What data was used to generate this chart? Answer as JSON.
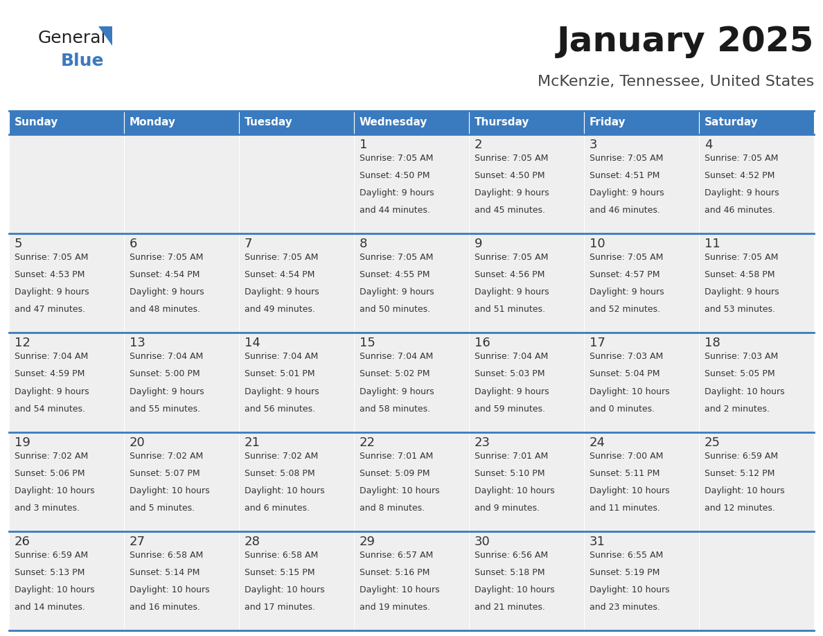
{
  "title": "January 2025",
  "subtitle": "McKenzie, Tennessee, United States",
  "header_color": "#3a7abf",
  "header_text_color": "#ffffff",
  "cell_bg_color": "#efefef",
  "cell_bg_color2": "#ffffff",
  "cell_border_color": "#3a7abf",
  "day_number_color": "#333333",
  "text_color": "#333333",
  "days_of_week": [
    "Sunday",
    "Monday",
    "Tuesday",
    "Wednesday",
    "Thursday",
    "Friday",
    "Saturday"
  ],
  "calendar_data": [
    [
      {
        "day": "",
        "sunrise": "",
        "sunset": "",
        "daylight_line1": "",
        "daylight_line2": ""
      },
      {
        "day": "",
        "sunrise": "",
        "sunset": "",
        "daylight_line1": "",
        "daylight_line2": ""
      },
      {
        "day": "",
        "sunrise": "",
        "sunset": "",
        "daylight_line1": "",
        "daylight_line2": ""
      },
      {
        "day": "1",
        "sunrise": "7:05 AM",
        "sunset": "4:50 PM",
        "daylight_line1": "9 hours",
        "daylight_line2": "and 44 minutes."
      },
      {
        "day": "2",
        "sunrise": "7:05 AM",
        "sunset": "4:50 PM",
        "daylight_line1": "9 hours",
        "daylight_line2": "and 45 minutes."
      },
      {
        "day": "3",
        "sunrise": "7:05 AM",
        "sunset": "4:51 PM",
        "daylight_line1": "9 hours",
        "daylight_line2": "and 46 minutes."
      },
      {
        "day": "4",
        "sunrise": "7:05 AM",
        "sunset": "4:52 PM",
        "daylight_line1": "9 hours",
        "daylight_line2": "and 46 minutes."
      }
    ],
    [
      {
        "day": "5",
        "sunrise": "7:05 AM",
        "sunset": "4:53 PM",
        "daylight_line1": "9 hours",
        "daylight_line2": "and 47 minutes."
      },
      {
        "day": "6",
        "sunrise": "7:05 AM",
        "sunset": "4:54 PM",
        "daylight_line1": "9 hours",
        "daylight_line2": "and 48 minutes."
      },
      {
        "day": "7",
        "sunrise": "7:05 AM",
        "sunset": "4:54 PM",
        "daylight_line1": "9 hours",
        "daylight_line2": "and 49 minutes."
      },
      {
        "day": "8",
        "sunrise": "7:05 AM",
        "sunset": "4:55 PM",
        "daylight_line1": "9 hours",
        "daylight_line2": "and 50 minutes."
      },
      {
        "day": "9",
        "sunrise": "7:05 AM",
        "sunset": "4:56 PM",
        "daylight_line1": "9 hours",
        "daylight_line2": "and 51 minutes."
      },
      {
        "day": "10",
        "sunrise": "7:05 AM",
        "sunset": "4:57 PM",
        "daylight_line1": "9 hours",
        "daylight_line2": "and 52 minutes."
      },
      {
        "day": "11",
        "sunrise": "7:05 AM",
        "sunset": "4:58 PM",
        "daylight_line1": "9 hours",
        "daylight_line2": "and 53 minutes."
      }
    ],
    [
      {
        "day": "12",
        "sunrise": "7:04 AM",
        "sunset": "4:59 PM",
        "daylight_line1": "9 hours",
        "daylight_line2": "and 54 minutes."
      },
      {
        "day": "13",
        "sunrise": "7:04 AM",
        "sunset": "5:00 PM",
        "daylight_line1": "9 hours",
        "daylight_line2": "and 55 minutes."
      },
      {
        "day": "14",
        "sunrise": "7:04 AM",
        "sunset": "5:01 PM",
        "daylight_line1": "9 hours",
        "daylight_line2": "and 56 minutes."
      },
      {
        "day": "15",
        "sunrise": "7:04 AM",
        "sunset": "5:02 PM",
        "daylight_line1": "9 hours",
        "daylight_line2": "and 58 minutes."
      },
      {
        "day": "16",
        "sunrise": "7:04 AM",
        "sunset": "5:03 PM",
        "daylight_line1": "9 hours",
        "daylight_line2": "and 59 minutes."
      },
      {
        "day": "17",
        "sunrise": "7:03 AM",
        "sunset": "5:04 PM",
        "daylight_line1": "10 hours",
        "daylight_line2": "and 0 minutes."
      },
      {
        "day": "18",
        "sunrise": "7:03 AM",
        "sunset": "5:05 PM",
        "daylight_line1": "10 hours",
        "daylight_line2": "and 2 minutes."
      }
    ],
    [
      {
        "day": "19",
        "sunrise": "7:02 AM",
        "sunset": "5:06 PM",
        "daylight_line1": "10 hours",
        "daylight_line2": "and 3 minutes."
      },
      {
        "day": "20",
        "sunrise": "7:02 AM",
        "sunset": "5:07 PM",
        "daylight_line1": "10 hours",
        "daylight_line2": "and 5 minutes."
      },
      {
        "day": "21",
        "sunrise": "7:02 AM",
        "sunset": "5:08 PM",
        "daylight_line1": "10 hours",
        "daylight_line2": "and 6 minutes."
      },
      {
        "day": "22",
        "sunrise": "7:01 AM",
        "sunset": "5:09 PM",
        "daylight_line1": "10 hours",
        "daylight_line2": "and 8 minutes."
      },
      {
        "day": "23",
        "sunrise": "7:01 AM",
        "sunset": "5:10 PM",
        "daylight_line1": "10 hours",
        "daylight_line2": "and 9 minutes."
      },
      {
        "day": "24",
        "sunrise": "7:00 AM",
        "sunset": "5:11 PM",
        "daylight_line1": "10 hours",
        "daylight_line2": "and 11 minutes."
      },
      {
        "day": "25",
        "sunrise": "6:59 AM",
        "sunset": "5:12 PM",
        "daylight_line1": "10 hours",
        "daylight_line2": "and 12 minutes."
      }
    ],
    [
      {
        "day": "26",
        "sunrise": "6:59 AM",
        "sunset": "5:13 PM",
        "daylight_line1": "10 hours",
        "daylight_line2": "and 14 minutes."
      },
      {
        "day": "27",
        "sunrise": "6:58 AM",
        "sunset": "5:14 PM",
        "daylight_line1": "10 hours",
        "daylight_line2": "and 16 minutes."
      },
      {
        "day": "28",
        "sunrise": "6:58 AM",
        "sunset": "5:15 PM",
        "daylight_line1": "10 hours",
        "daylight_line2": "and 17 minutes."
      },
      {
        "day": "29",
        "sunrise": "6:57 AM",
        "sunset": "5:16 PM",
        "daylight_line1": "10 hours",
        "daylight_line2": "and 19 minutes."
      },
      {
        "day": "30",
        "sunrise": "6:56 AM",
        "sunset": "5:18 PM",
        "daylight_line1": "10 hours",
        "daylight_line2": "and 21 minutes."
      },
      {
        "day": "31",
        "sunrise": "6:55 AM",
        "sunset": "5:19 PM",
        "daylight_line1": "10 hours",
        "daylight_line2": "and 23 minutes."
      },
      {
        "day": "",
        "sunrise": "",
        "sunset": "",
        "daylight_line1": "",
        "daylight_line2": ""
      }
    ]
  ],
  "logo_general_color": "#222222",
  "logo_blue_color": "#3a7abf",
  "title_fontsize": 36,
  "subtitle_fontsize": 16,
  "header_fontsize": 11,
  "day_num_fontsize": 13,
  "cell_text_fontsize": 9
}
